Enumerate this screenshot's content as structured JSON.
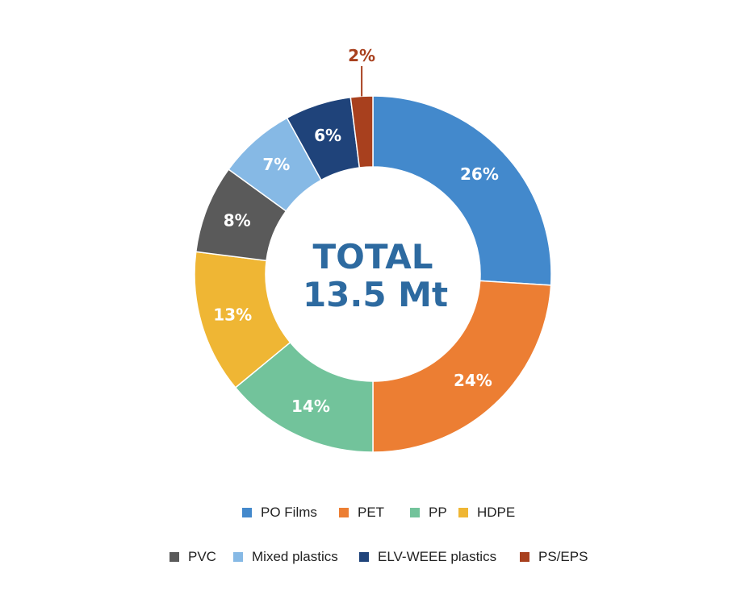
{
  "chart_data": {
    "type": "pie",
    "donut": true,
    "center_text": [
      "TOTAL",
      "13.5 Mt"
    ],
    "categories": [
      "PO Films",
      "PET",
      "PP",
      "HDPE",
      "PVC",
      "Mixed plastics",
      "ELV-WEEE plastics",
      "PS/EPS"
    ],
    "values": [
      26,
      24,
      14,
      13,
      8,
      7,
      6,
      2
    ],
    "labels": [
      "26%",
      "24%",
      "14%",
      "13%",
      "8%",
      "7%",
      "6%",
      "2%"
    ],
    "colors": [
      "#4389cc",
      "#ec7e33",
      "#72c39b",
      "#efb634",
      "#5a5a5a",
      "#86b9e5",
      "#1f437a",
      "#a8401e"
    ],
    "callout_color": "#a8401e",
    "legend_position": "bottom",
    "legend_rows": [
      [
        0,
        1,
        2,
        3
      ],
      [
        4,
        5,
        6,
        7
      ]
    ]
  }
}
